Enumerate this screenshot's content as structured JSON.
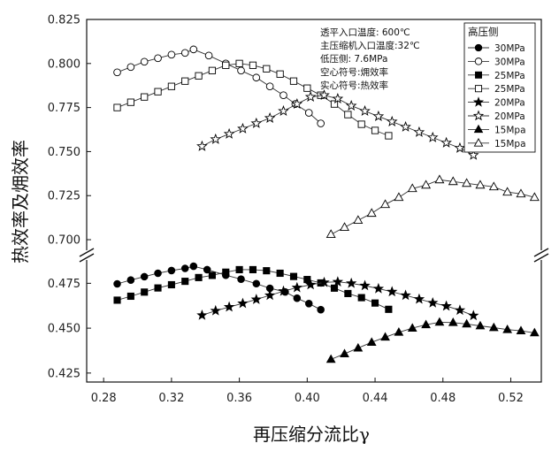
{
  "chart_data": {
    "type": "line",
    "xlabel": "再压缩分流比γ",
    "ylabel": "热效率及㶲效率",
    "x_ticks": [
      "0.28",
      "0.32",
      "0.36",
      "0.40",
      "0.44",
      "0.48",
      "0.52"
    ],
    "xlim": [
      0.27,
      0.538
    ],
    "y_upper": {
      "range": [
        0.695,
        0.825
      ],
      "ticks": [
        "0.700",
        "0.725",
        "0.750",
        "0.775",
        "0.800",
        "0.825"
      ]
    },
    "y_lower": {
      "range": [
        0.42,
        0.487
      ],
      "ticks": [
        "0.425",
        "0.450",
        "0.475"
      ]
    },
    "axis_break": true,
    "grid": false,
    "annotations": [
      "透平入口温度: 600℃",
      "主压缩机入口温度:32℃",
      "低压侧: 7.6MPa",
      "空心符号:㶲效率",
      "实心符号:热效率"
    ],
    "legend": {
      "title": "高压侧",
      "position": "top-right"
    },
    "series": [
      {
        "name": "30MPa",
        "marker": "circle",
        "filled": true,
        "panel": "lower",
        "x": [
          0.288,
          0.296,
          0.304,
          0.312,
          0.32,
          0.328,
          0.333,
          0.341,
          0.352,
          0.361,
          0.37,
          0.378,
          0.387,
          0.394,
          0.401,
          0.408
        ],
        "y": [
          0.4747,
          0.4768,
          0.4787,
          0.4806,
          0.4821,
          0.4833,
          0.4845,
          0.4826,
          0.4795,
          0.4773,
          0.4748,
          0.4722,
          0.4702,
          0.4667,
          0.4637,
          0.4603
        ]
      },
      {
        "name": "30MPa",
        "marker": "circle",
        "filled": false,
        "panel": "upper",
        "x": [
          0.288,
          0.296,
          0.304,
          0.312,
          0.32,
          0.328,
          0.333,
          0.342,
          0.352,
          0.361,
          0.37,
          0.378,
          0.386,
          0.393,
          0.401,
          0.408
        ],
        "y": [
          0.795,
          0.798,
          0.801,
          0.803,
          0.805,
          0.806,
          0.808,
          0.8045,
          0.8,
          0.796,
          0.792,
          0.787,
          0.782,
          0.777,
          0.772,
          0.766
        ]
      },
      {
        "name": "25MPa",
        "marker": "square",
        "filled": true,
        "panel": "lower",
        "x": [
          0.288,
          0.296,
          0.304,
          0.312,
          0.32,
          0.328,
          0.336,
          0.344,
          0.352,
          0.36,
          0.368,
          0.376,
          0.384,
          0.392,
          0.4,
          0.408,
          0.416,
          0.424,
          0.432,
          0.44,
          0.448
        ],
        "y": [
          0.4656,
          0.4678,
          0.4701,
          0.4724,
          0.4742,
          0.4761,
          0.4782,
          0.4794,
          0.4812,
          0.4826,
          0.4826,
          0.482,
          0.4806,
          0.4788,
          0.4771,
          0.4752,
          0.4723,
          0.4693,
          0.467,
          0.464,
          0.4605
        ]
      },
      {
        "name": "25MPa",
        "marker": "square",
        "filled": false,
        "panel": "upper",
        "x": [
          0.288,
          0.296,
          0.304,
          0.312,
          0.32,
          0.328,
          0.336,
          0.344,
          0.352,
          0.36,
          0.368,
          0.376,
          0.384,
          0.392,
          0.4,
          0.408,
          0.416,
          0.424,
          0.432,
          0.44,
          0.448
        ],
        "y": [
          0.775,
          0.778,
          0.781,
          0.784,
          0.787,
          0.79,
          0.793,
          0.796,
          0.799,
          0.8,
          0.799,
          0.797,
          0.794,
          0.79,
          0.786,
          0.782,
          0.777,
          0.771,
          0.7655,
          0.762,
          0.759
        ]
      },
      {
        "name": "20MPa",
        "marker": "star",
        "filled": true,
        "panel": "lower",
        "x": [
          0.338,
          0.346,
          0.354,
          0.362,
          0.37,
          0.378,
          0.386,
          0.394,
          0.402,
          0.41,
          0.418,
          0.426,
          0.434,
          0.442,
          0.45,
          0.458,
          0.466,
          0.474,
          0.482,
          0.49,
          0.498
        ],
        "y": [
          0.4572,
          0.4597,
          0.4618,
          0.4638,
          0.466,
          0.4683,
          0.4706,
          0.4726,
          0.4742,
          0.4755,
          0.4758,
          0.475,
          0.4737,
          0.472,
          0.4703,
          0.4683,
          0.4662,
          0.4641,
          0.4623,
          0.46,
          0.457
        ]
      },
      {
        "name": "20MPa",
        "marker": "star",
        "filled": false,
        "panel": "upper",
        "x": [
          0.338,
          0.346,
          0.354,
          0.362,
          0.37,
          0.378,
          0.386,
          0.394,
          0.402,
          0.41,
          0.418,
          0.426,
          0.434,
          0.442,
          0.45,
          0.458,
          0.466,
          0.474,
          0.482,
          0.49,
          0.498
        ],
        "y": [
          0.753,
          0.757,
          0.76,
          0.763,
          0.766,
          0.769,
          0.773,
          0.777,
          0.781,
          0.782,
          0.78,
          0.776,
          0.773,
          0.77,
          0.767,
          0.764,
          0.761,
          0.758,
          0.755,
          0.752,
          0.748
        ]
      },
      {
        "name": "15Mpa",
        "marker": "triangle",
        "filled": true,
        "panel": "lower",
        "x": [
          0.414,
          0.422,
          0.43,
          0.438,
          0.446,
          0.454,
          0.462,
          0.47,
          0.478,
          0.486,
          0.494,
          0.502,
          0.51,
          0.518,
          0.526,
          0.534
        ],
        "y": [
          0.4326,
          0.4357,
          0.4389,
          0.4421,
          0.445,
          0.4477,
          0.45,
          0.4519,
          0.4533,
          0.4531,
          0.4523,
          0.4513,
          0.4503,
          0.4492,
          0.4485,
          0.4474
        ]
      },
      {
        "name": "15Mpa",
        "marker": "triangle",
        "filled": false,
        "panel": "upper",
        "x": [
          0.414,
          0.422,
          0.43,
          0.438,
          0.446,
          0.454,
          0.462,
          0.47,
          0.478,
          0.486,
          0.494,
          0.502,
          0.51,
          0.518,
          0.526,
          0.534
        ],
        "y": [
          0.703,
          0.707,
          0.711,
          0.715,
          0.72,
          0.724,
          0.729,
          0.731,
          0.734,
          0.733,
          0.732,
          0.731,
          0.73,
          0.727,
          0.726,
          0.724
        ]
      }
    ]
  }
}
